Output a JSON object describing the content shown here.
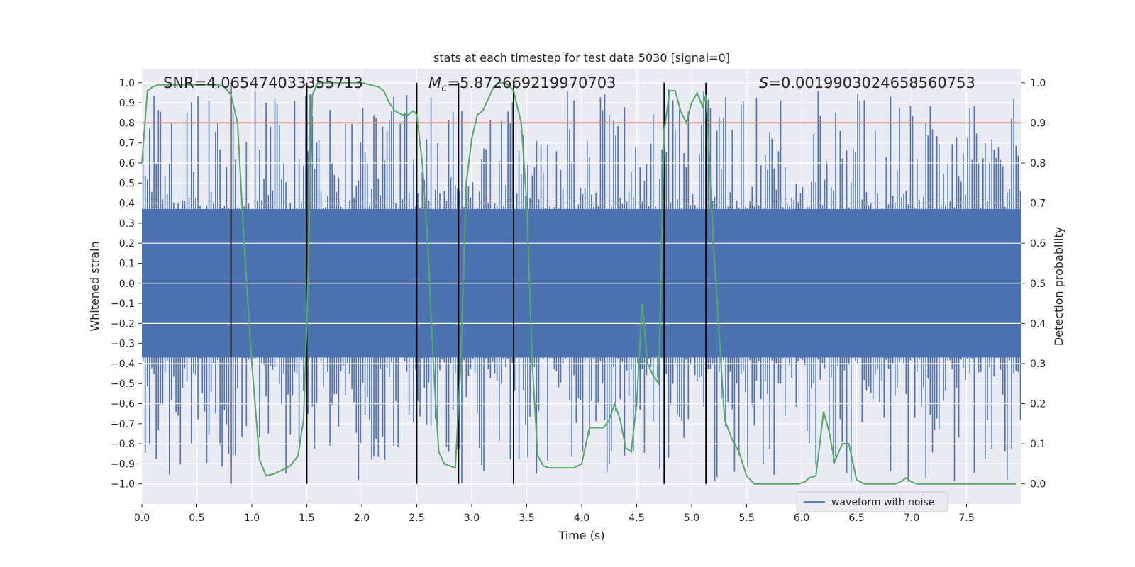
{
  "chart_data": {
    "type": "line",
    "title": "stats at each timestep for test data 5030 [signal=0]",
    "xlabel": "Time (s)",
    "ylabel_left": "Whitened strain",
    "ylabel_right": "Detection probability",
    "xlim": [
      0.0,
      8.0
    ],
    "ylim_left": [
      -1.1,
      1.07
    ],
    "ylim_right": [
      -0.05,
      1.035
    ],
    "x_ticks": [
      0.0,
      0.5,
      1.0,
      1.5,
      2.0,
      2.5,
      3.0,
      3.5,
      4.0,
      4.5,
      5.0,
      5.5,
      6.0,
      6.5,
      7.0,
      7.5
    ],
    "x_tick_labels": [
      "0.0",
      "0.5",
      "1.0",
      "1.5",
      "2.0",
      "2.5",
      "3.0",
      "3.5",
      "4.0",
      "4.5",
      "5.0",
      "5.5",
      "6.0",
      "6.5",
      "7.0",
      "7.5"
    ],
    "y_left_ticks": [
      -1.0,
      -0.9,
      -0.8,
      -0.7,
      -0.6,
      -0.5,
      -0.4,
      -0.3,
      -0.2,
      -0.1,
      0.0,
      0.1,
      0.2,
      0.3,
      0.4,
      0.5,
      0.6,
      0.7,
      0.8,
      0.9,
      1.0
    ],
    "y_left_tick_labels": [
      "−1.0",
      "−0.9",
      "−0.8",
      "−0.7",
      "−0.6",
      "−0.5",
      "−0.4",
      "−0.3",
      "−0.2",
      "−0.1",
      "0.0",
      "0.1",
      "0.2",
      "0.3",
      "0.4",
      "0.5",
      "0.6",
      "0.7",
      "0.8",
      "0.9",
      "1.0"
    ],
    "y_right_ticks": [
      0.0,
      0.1,
      0.2,
      0.3,
      0.4,
      0.5,
      0.6,
      0.7,
      0.8,
      0.9,
      1.0
    ],
    "y_right_tick_labels": [
      "0.0",
      "0.1",
      "0.2",
      "0.3",
      "0.4",
      "0.5",
      "0.6",
      "0.7",
      "0.8",
      "0.9",
      "1.0"
    ],
    "annotations": {
      "snr_label": "SNR=4.065474033355713",
      "mc_symbol": "M",
      "mc_subscript": "c",
      "mc_value": "=5.872669219970703",
      "s_symbol": "S",
      "s_value": "=0.0019903024658560753"
    },
    "legend": {
      "label": "waveform with noise",
      "loc": "lower-right"
    },
    "threshold_probability": 0.9,
    "vertical_lines_s": [
      0.81,
      1.5,
      2.5,
      2.88,
      3.38,
      4.75,
      5.13
    ],
    "series": [
      {
        "name": "waveform with noise",
        "axis": "left",
        "style": "noise-band",
        "bins": 400,
        "seed": 5030,
        "core_half_width": 0.37,
        "peak_max": 0.97,
        "trough_min": -1.0
      },
      {
        "name": "detection probability",
        "axis": "right",
        "x": [
          0.0,
          0.05,
          0.1,
          0.15,
          0.25,
          0.4,
          0.55,
          0.7,
          0.75,
          0.81,
          0.87,
          0.93,
          1.0,
          1.07,
          1.13,
          1.2,
          1.28,
          1.35,
          1.42,
          1.47,
          1.5,
          1.55,
          1.6,
          1.7,
          1.85,
          2.0,
          2.15,
          2.2,
          2.25,
          2.3,
          2.37,
          2.42,
          2.47,
          2.5,
          2.55,
          2.6,
          2.65,
          2.7,
          2.75,
          2.8,
          2.85,
          2.9,
          2.95,
          3.0,
          3.05,
          3.1,
          3.15,
          3.2,
          3.25,
          3.3,
          3.35,
          3.38,
          3.45,
          3.5,
          3.55,
          3.6,
          3.65,
          3.7,
          3.75,
          3.8,
          3.87,
          3.93,
          4.0,
          4.07,
          4.13,
          4.2,
          4.25,
          4.3,
          4.35,
          4.4,
          4.45,
          4.5,
          4.55,
          4.6,
          4.65,
          4.7,
          4.75,
          4.8,
          4.85,
          4.9,
          4.95,
          5.0,
          5.05,
          5.1,
          5.13,
          5.2,
          5.3,
          5.37,
          5.43,
          5.5,
          5.57,
          5.63,
          5.7,
          5.77,
          5.83,
          5.9,
          5.97,
          6.03,
          6.07,
          6.13,
          6.2,
          6.25,
          6.3,
          6.37,
          6.43,
          6.5,
          6.57,
          6.63,
          6.7,
          6.77,
          6.85,
          6.9,
          6.95,
          7.0,
          7.05,
          7.2,
          7.4,
          7.6,
          7.8,
          7.95
        ],
        "y": [
          0.8,
          0.98,
          0.99,
          0.995,
          0.995,
          0.995,
          0.995,
          0.995,
          0.99,
          0.97,
          0.9,
          0.6,
          0.3,
          0.06,
          0.02,
          0.025,
          0.035,
          0.045,
          0.07,
          0.16,
          0.4,
          0.97,
          1.0,
          1.0,
          1.0,
          1.0,
          0.99,
          0.98,
          0.95,
          0.93,
          0.92,
          0.92,
          0.93,
          0.92,
          0.8,
          0.6,
          0.3,
          0.08,
          0.05,
          0.045,
          0.04,
          0.3,
          0.75,
          0.86,
          0.92,
          0.93,
          0.96,
          0.99,
          1.0,
          1.0,
          0.99,
          0.98,
          0.9,
          0.7,
          0.3,
          0.07,
          0.045,
          0.04,
          0.04,
          0.04,
          0.04,
          0.04,
          0.05,
          0.14,
          0.14,
          0.14,
          0.16,
          0.2,
          0.16,
          0.09,
          0.08,
          0.2,
          0.45,
          0.3,
          0.27,
          0.25,
          0.88,
          0.98,
          0.98,
          0.93,
          0.9,
          0.95,
          0.975,
          0.94,
          0.97,
          0.59,
          0.16,
          0.11,
          0.08,
          0.02,
          0.0,
          0.0,
          0.0,
          0.0,
          0.0,
          0.0,
          0.0,
          0.005,
          0.015,
          0.02,
          0.18,
          0.13,
          0.055,
          0.1,
          0.1,
          0.01,
          0.0,
          0.0,
          0.0,
          0.0,
          0.0,
          0.005,
          0.015,
          0.005,
          0.0,
          0.0,
          0.0,
          0.0,
          0.0,
          0.0
        ]
      }
    ],
    "colors": {
      "background": "#ffffff",
      "axes_face": "#eaeaf2",
      "grid": "#ffffff",
      "waveform": "#4c72b0",
      "probability": "#55a868",
      "threshold": "#c44e52",
      "vertical_lines": "#000000",
      "text": "#262626"
    }
  }
}
